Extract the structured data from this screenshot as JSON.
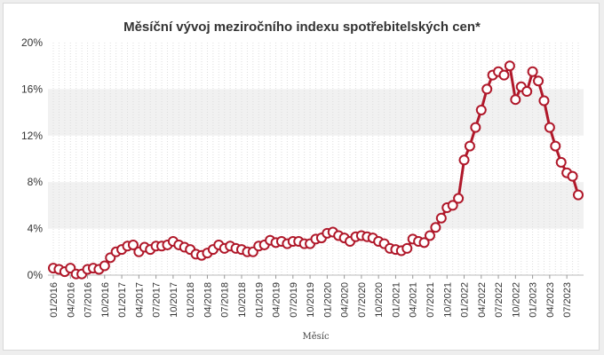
{
  "chart_data": {
    "type": "line",
    "title": "Měsíční vývoj meziročního indexu spotřebitelských cen*",
    "xlabel": "Měsíc",
    "ylabel": "",
    "x_start": "01/2016",
    "x_end": "09/2023",
    "ylim": [
      0,
      20
    ],
    "y_ticks": [
      "0%",
      "4%",
      "8%",
      "12%",
      "16%",
      "20%"
    ],
    "x_tick_labels": [
      "01/2016",
      "04/2016",
      "07/2016",
      "10/2016",
      "01/2017",
      "04/2017",
      "07/2017",
      "10/2017",
      "01/2018",
      "04/2018",
      "07/2018",
      "10/2018",
      "01/2019",
      "04/2019",
      "07/2019",
      "10/2019",
      "01/2020",
      "04/2020",
      "07/2020",
      "10/2020",
      "01/2021",
      "04/2021",
      "07/2021",
      "10/2021",
      "01/2022",
      "04/2022",
      "07/2022",
      "10/2022",
      "01/2023",
      "04/2023",
      "07/2023"
    ],
    "grid": "horizontal bands",
    "colors": {
      "line": "#b0182a",
      "band": "#f1f1f1",
      "marker_fill": "#ffffff"
    },
    "series": [
      {
        "values": [
          0.6,
          0.5,
          0.3,
          0.6,
          0.1,
          0.1,
          0.5,
          0.6,
          0.5,
          0.8,
          1.5,
          2.0,
          2.2,
          2.5,
          2.6,
          2.0,
          2.4,
          2.2,
          2.5,
          2.5,
          2.6,
          2.9,
          2.6,
          2.4,
          2.2,
          1.8,
          1.7,
          1.9,
          2.2,
          2.6,
          2.3,
          2.5,
          2.3,
          2.2,
          2.0,
          2.0,
          2.5,
          2.6,
          3.0,
          2.8,
          2.9,
          2.7,
          2.9,
          2.9,
          2.7,
          2.7,
          3.1,
          3.2,
          3.6,
          3.7,
          3.4,
          3.2,
          2.9,
          3.3,
          3.4,
          3.3,
          3.2,
          2.9,
          2.7,
          2.3,
          2.2,
          2.1,
          2.3,
          3.1,
          2.9,
          2.8,
          3.4,
          4.1,
          4.9,
          5.8,
          6.0,
          6.6,
          9.9,
          11.1,
          12.7,
          14.2,
          16.0,
          17.2,
          17.5,
          17.2,
          18.0,
          15.1,
          16.2,
          15.8,
          17.5,
          16.7,
          15.0,
          12.7,
          11.1,
          9.7,
          8.8,
          8.5,
          6.9
        ]
      }
    ]
  }
}
